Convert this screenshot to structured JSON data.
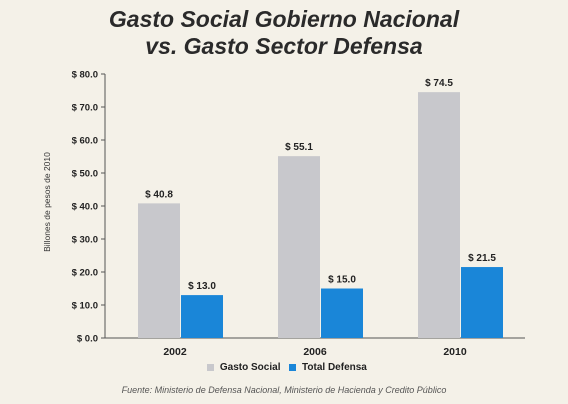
{
  "title_line1": "Gasto Social Gobierno Nacional",
  "title_line2": "vs. Gasto Sector Defensa",
  "source": "Fuente: Ministerio de Defensa Nacional, Ministerio  de Hacienda y Credito Público",
  "colors": {
    "social": "#c8c8cc",
    "defensa": "#1a86d8"
  },
  "chart_data": {
    "type": "bar",
    "categories": [
      "2002",
      "2006",
      "2010"
    ],
    "series": [
      {
        "name": "Gasto Social",
        "values": [
          40.8,
          55.1,
          74.5
        ],
        "labels": [
          "$ 40.8",
          "$ 55.1",
          "$ 74.5"
        ]
      },
      {
        "name": "Total Defensa",
        "values": [
          13.0,
          15.0,
          21.5
        ],
        "labels": [
          "$ 13.0",
          "$ 15.0",
          "$ 21.5"
        ]
      }
    ],
    "ylabel": "Billones de pesos de 2010",
    "ylim": [
      0,
      80
    ],
    "yticks": [
      0,
      10,
      20,
      30,
      40,
      50,
      60,
      70,
      80
    ],
    "ytick_labels": [
      "$ 0.0",
      "$ 10.0",
      "$ 20.0",
      "$ 30.0",
      "$ 40.0",
      "$ 50.0",
      "$ 60.0",
      "$ 70.0",
      "$ 80.0"
    ],
    "grid": false,
    "legend": "bottom"
  }
}
